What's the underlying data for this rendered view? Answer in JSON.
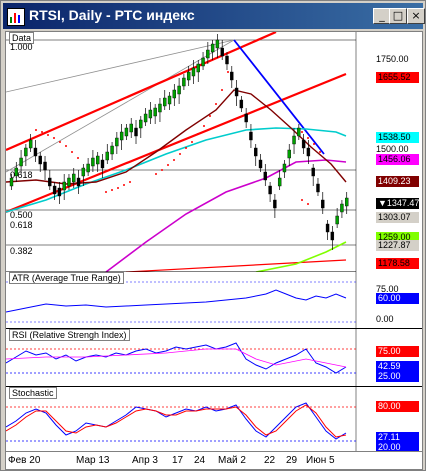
{
  "window": {
    "title": "RTSI, Daily - РТС индекс",
    "minimize": "_",
    "maximize": "□",
    "close": "×"
  },
  "main_pane": {
    "label": "Data",
    "fib_levels": [
      "1.000",
      "0.618",
      "0.500",
      "0.382"
    ],
    "fib_levels_secondary": [
      "0.618"
    ],
    "price_axis": [
      "1750.00",
      "1500.00"
    ],
    "tags": [
      {
        "text": "1655.52",
        "bg": "#ff0000",
        "fg": "#000000"
      },
      {
        "text": "1538.50",
        "bg": "#00ffff",
        "fg": "#000000"
      },
      {
        "text": "1456.06",
        "bg": "#ff00ff",
        "fg": "#000000"
      },
      {
        "text": "1409.23",
        "bg": "#800000",
        "fg": "#ffffff"
      },
      {
        "text": "▼1347.47",
        "bg": "#000000",
        "fg": "#ffffff"
      },
      {
        "text": "1303.07",
        "bg": "#d4d0c8",
        "fg": "#000000"
      },
      {
        "text": "1259.00",
        "bg": "#80ff00",
        "fg": "#000000"
      },
      {
        "text": "1227.87",
        "bg": "#d4d0c8",
        "fg": "#000000"
      },
      {
        "text": "1178.58",
        "bg": "#ff0000",
        "fg": "#000000"
      }
    ]
  },
  "atr_pane": {
    "label": "ATR (Average True Range)",
    "axis": [
      "75.00",
      "0.00"
    ],
    "tag": {
      "text": "60.00",
      "bg": "#0000ff",
      "fg": "#ffffff"
    }
  },
  "rsi_pane": {
    "label": "RSI (Relative Strengh Index)",
    "tags": [
      {
        "text": "75.00",
        "bg": "#ff0000",
        "fg": "#ffffff"
      },
      {
        "text": "42.59",
        "bg": "#0000ff",
        "fg": "#ffffff"
      },
      {
        "text": "25.00",
        "bg": "#0000ff",
        "fg": "#ffffff"
      }
    ]
  },
  "stoch_pane": {
    "label": "Stochastic",
    "tags": [
      {
        "text": "80.00",
        "bg": "#ff0000",
        "fg": "#ffffff"
      },
      {
        "text": "27.11",
        "bg": "#0000ff",
        "fg": "#ffffff"
      },
      {
        "text": "20.00",
        "bg": "#0000ff",
        "fg": "#ffffff"
      }
    ]
  },
  "dates": [
    "Фев 20",
    "Мар 13",
    "Апр 3",
    "17",
    "24",
    "Май 2",
    "22",
    "29",
    "Июн 5"
  ],
  "colors": {
    "candle": "#008000",
    "channel": "#ff0000",
    "downtrend": "#0000ff",
    "ma_fast": "#800000",
    "ma_mid": "#00cccc",
    "ma_slow": "#cc00cc",
    "ma_long": "#80ff00"
  }
}
